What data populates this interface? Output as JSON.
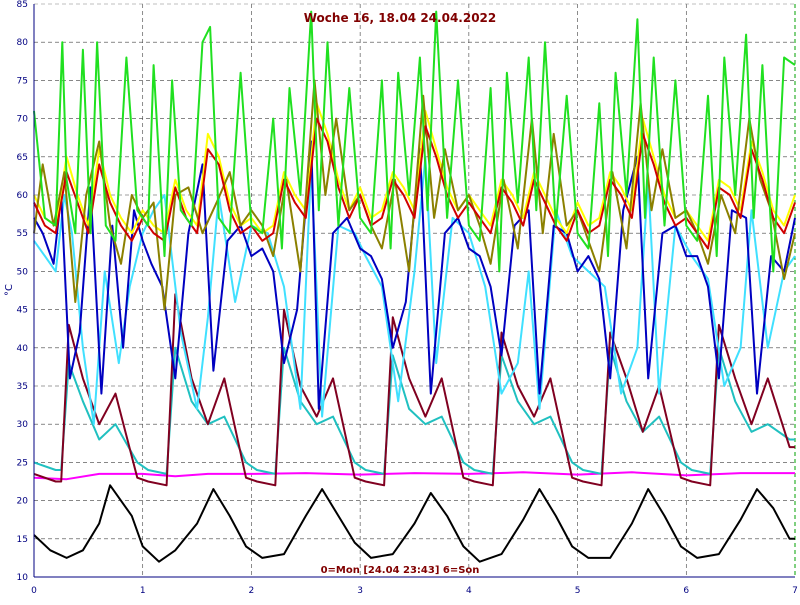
{
  "chart_data": {
    "type": "line",
    "title": "Woche 16, 18.04  24.04.2022",
    "legend_text": "0=Mon [24.04 23:43] 6=Son",
    "ylabel": "°C",
    "xlim": [
      0,
      7
    ],
    "ylim": [
      10,
      85
    ],
    "x_ticks": [
      0,
      1,
      2,
      3,
      4,
      5,
      6,
      7
    ],
    "y_ticks": [
      10,
      15,
      20,
      25,
      30,
      35,
      40,
      45,
      50,
      55,
      60,
      65,
      70,
      75,
      80,
      85
    ],
    "grid": true,
    "series": [
      {
        "color": "#000000",
        "x": [
          0,
          0.15,
          0.3,
          0.45,
          0.6,
          0.7,
          0.9,
          1.0,
          1.15,
          1.3,
          1.5,
          1.65,
          1.8,
          1.95,
          2.1,
          2.3,
          2.5,
          2.65,
          2.8,
          2.95,
          3.1,
          3.3,
          3.5,
          3.65,
          3.8,
          3.95,
          4.1,
          4.3,
          4.5,
          4.65,
          4.8,
          4.95,
          5.1,
          5.3,
          5.5,
          5.65,
          5.8,
          5.95,
          6.1,
          6.3,
          6.5,
          6.65,
          6.8,
          6.95,
          7.0
        ],
        "y": [
          15.5,
          13.5,
          12.5,
          13.5,
          17,
          22,
          18,
          14,
          12,
          13.5,
          17,
          21.5,
          18,
          14,
          12.5,
          13,
          18,
          21.5,
          18,
          14.5,
          12.5,
          13,
          17,
          21,
          18,
          14,
          12,
          13,
          17.5,
          21.5,
          18,
          14,
          12.5,
          12.5,
          17,
          21.5,
          18,
          14,
          12.5,
          13,
          17.5,
          21.5,
          19,
          15,
          15
        ]
      },
      {
        "color": "#ff00ff",
        "x": [
          0,
          0.3,
          0.6,
          1.0,
          1.3,
          1.6,
          2.0,
          2.5,
          3.0,
          3.5,
          4.0,
          4.5,
          5.0,
          5.5,
          6.0,
          6.5,
          7.0
        ],
        "y": [
          23,
          22.8,
          23.5,
          23.5,
          23.2,
          23.5,
          23.5,
          23.6,
          23.4,
          23.6,
          23.5,
          23.7,
          23.4,
          23.7,
          23.3,
          23.6,
          23.6
        ]
      },
      {
        "color": "#20c0c0",
        "x": [
          0,
          0.2,
          0.25,
          0.32,
          0.45,
          0.6,
          0.75,
          0.95,
          1.05,
          1.22,
          1.3,
          1.45,
          1.6,
          1.75,
          1.95,
          2.05,
          2.22,
          2.3,
          2.45,
          2.6,
          2.75,
          2.95,
          3.05,
          3.22,
          3.3,
          3.45,
          3.6,
          3.75,
          3.95,
          4.05,
          4.22,
          4.3,
          4.45,
          4.6,
          4.75,
          4.95,
          5.05,
          5.22,
          5.3,
          5.45,
          5.6,
          5.75,
          5.95,
          6.05,
          6.22,
          6.3,
          6.45,
          6.6,
          6.75,
          6.95,
          7.0
        ],
        "y": [
          25,
          24,
          24,
          38,
          33,
          28,
          30,
          25,
          24,
          23.5,
          40,
          33,
          30,
          31,
          25,
          24,
          23.5,
          40,
          33,
          30,
          31,
          25,
          24,
          23.5,
          39,
          32,
          30,
          31,
          25,
          24,
          23.5,
          39,
          33,
          30,
          31,
          25,
          24,
          23.5,
          40,
          33,
          29,
          31,
          25,
          24,
          23.5,
          40,
          33,
          29,
          30,
          28,
          28
        ]
      },
      {
        "color": "#800020",
        "x": [
          0,
          0.2,
          0.25,
          0.32,
          0.45,
          0.6,
          0.75,
          0.95,
          1.05,
          1.22,
          1.3,
          1.45,
          1.6,
          1.75,
          1.95,
          2.05,
          2.22,
          2.3,
          2.45,
          2.6,
          2.75,
          2.95,
          3.05,
          3.22,
          3.3,
          3.45,
          3.6,
          3.75,
          3.95,
          4.05,
          4.22,
          4.3,
          4.45,
          4.6,
          4.75,
          4.95,
          5.05,
          5.22,
          5.3,
          5.45,
          5.6,
          5.75,
          5.95,
          6.05,
          6.22,
          6.3,
          6.45,
          6.6,
          6.75,
          6.95,
          7.0
        ],
        "y": [
          23.5,
          22.5,
          22.5,
          43,
          36,
          30,
          34,
          23,
          22.5,
          22,
          47,
          36,
          30,
          36,
          23,
          22.5,
          22,
          45,
          35,
          31,
          36,
          23,
          22.5,
          22,
          44,
          36,
          31,
          36,
          23,
          22.5,
          22,
          42,
          35,
          31,
          36,
          23,
          22.5,
          22,
          42,
          36,
          29,
          35,
          23,
          22.5,
          22,
          43,
          36,
          30,
          36,
          27,
          27
        ]
      },
      {
        "color": "#40e0ff",
        "x": [
          0,
          0.1,
          0.2,
          0.28,
          0.35,
          0.45,
          0.55,
          0.65,
          0.78,
          0.88,
          1.0,
          1.1,
          1.2,
          1.35,
          1.5,
          1.6,
          1.7,
          1.85,
          2.0,
          2.15,
          2.3,
          2.45,
          2.55,
          2.65,
          2.8,
          2.95,
          3.05,
          3.2,
          3.35,
          3.5,
          3.6,
          3.7,
          3.85,
          4.0,
          4.15,
          4.3,
          4.45,
          4.55,
          4.65,
          4.8,
          4.95,
          5.1,
          5.25,
          5.4,
          5.55,
          5.65,
          5.75,
          5.9,
          6.05,
          6.2,
          6.35,
          6.5,
          6.6,
          6.75,
          6.9,
          7.0
        ],
        "y": [
          54,
          52,
          50,
          60,
          55,
          40,
          30,
          50,
          38,
          48,
          55,
          58,
          60,
          42,
          32,
          44,
          60,
          46,
          56,
          55,
          48,
          32,
          64,
          31,
          56,
          55,
          52,
          48,
          33,
          50,
          65,
          38,
          57,
          55,
          48,
          34,
          38,
          50,
          32,
          58,
          52,
          50,
          48,
          34,
          40,
          62,
          34,
          56,
          52,
          49,
          35,
          40,
          58,
          40,
          50,
          52
        ]
      },
      {
        "color": "#0000c0",
        "x": [
          0,
          0.08,
          0.18,
          0.25,
          0.33,
          0.42,
          0.52,
          0.62,
          0.72,
          0.82,
          0.92,
          1.0,
          1.08,
          1.18,
          1.3,
          1.42,
          1.55,
          1.65,
          1.78,
          1.9,
          2.0,
          2.1,
          2.2,
          2.3,
          2.42,
          2.55,
          2.62,
          2.75,
          2.88,
          3.0,
          3.1,
          3.2,
          3.3,
          3.42,
          3.55,
          3.65,
          3.78,
          3.9,
          4.0,
          4.1,
          4.2,
          4.3,
          4.42,
          4.55,
          4.65,
          4.78,
          4.9,
          5.0,
          5.1,
          5.2,
          5.3,
          5.42,
          5.55,
          5.65,
          5.78,
          5.9,
          6.0,
          6.1,
          6.2,
          6.3,
          6.42,
          6.55,
          6.65,
          6.78,
          6.9,
          7.0
        ],
        "y": [
          57,
          55,
          51,
          60,
          36,
          42,
          61,
          34,
          56,
          40,
          58,
          54,
          51,
          48,
          36,
          55,
          64,
          37,
          54,
          56,
          52,
          53,
          50,
          38,
          45,
          67,
          32,
          55,
          57,
          53,
          52,
          49,
          40,
          46,
          66,
          34,
          55,
          57,
          53,
          52,
          48,
          39,
          56,
          58,
          34,
          56,
          55,
          50,
          52,
          49,
          36,
          58,
          65,
          36,
          55,
          56,
          52,
          52,
          48,
          36,
          58,
          57,
          34,
          52,
          50,
          57
        ]
      },
      {
        "color": "#ffff00",
        "x": [
          0,
          0.1,
          0.2,
          0.3,
          0.4,
          0.5,
          0.6,
          0.7,
          0.8,
          0.9,
          1.0,
          1.1,
          1.2,
          1.3,
          1.4,
          1.5,
          1.6,
          1.7,
          1.8,
          1.9,
          2.0,
          2.1,
          2.2,
          2.3,
          2.4,
          2.5,
          2.6,
          2.7,
          2.8,
          2.9,
          3.0,
          3.1,
          3.2,
          3.3,
          3.4,
          3.5,
          3.6,
          3.7,
          3.8,
          3.9,
          4.0,
          4.1,
          4.2,
          4.3,
          4.4,
          4.5,
          4.6,
          4.7,
          4.8,
          4.9,
          5.0,
          5.1,
          5.2,
          5.3,
          5.4,
          5.5,
          5.6,
          5.7,
          5.8,
          5.9,
          6.0,
          6.1,
          6.2,
          6.3,
          6.4,
          6.5,
          6.6,
          6.7,
          6.8,
          6.9,
          7.0
        ],
        "y": [
          60,
          57,
          56,
          65,
          60,
          56,
          66,
          60,
          57,
          55,
          58,
          56,
          55,
          62,
          58,
          56,
          68,
          65,
          59,
          56,
          57,
          55,
          56,
          63,
          60,
          58,
          72,
          68,
          62,
          58,
          61,
          57,
          58,
          63,
          61,
          58,
          71,
          66,
          61,
          58,
          60,
          58,
          56,
          62,
          60,
          57,
          63,
          60,
          57,
          55,
          59,
          56,
          57,
          63,
          61,
          58,
          70,
          65,
          60,
          57,
          58,
          56,
          54,
          62,
          61,
          58,
          67,
          63,
          58,
          56,
          60
        ]
      },
      {
        "color": "#8b8000",
        "x": [
          0,
          0.08,
          0.18,
          0.28,
          0.38,
          0.48,
          0.6,
          0.7,
          0.8,
          0.9,
          1.0,
          1.1,
          1.2,
          1.3,
          1.42,
          1.55,
          1.68,
          1.8,
          1.9,
          2.0,
          2.1,
          2.2,
          2.32,
          2.45,
          2.58,
          2.68,
          2.78,
          2.9,
          3.0,
          3.1,
          3.2,
          3.32,
          3.45,
          3.58,
          3.68,
          3.78,
          3.9,
          4.0,
          4.1,
          4.2,
          4.32,
          4.45,
          4.58,
          4.68,
          4.78,
          4.9,
          5.0,
          5.1,
          5.2,
          5.32,
          5.45,
          5.58,
          5.68,
          5.78,
          5.9,
          6.0,
          6.1,
          6.2,
          6.32,
          6.45,
          6.58,
          6.68,
          6.78,
          6.9,
          7.0
        ],
        "y": [
          55,
          64,
          56,
          63,
          46,
          60,
          67,
          56,
          51,
          60,
          57,
          59,
          45,
          60,
          61,
          55,
          59,
          63,
          56,
          58,
          56,
          52,
          62,
          50,
          75,
          60,
          70,
          58,
          60,
          56,
          53,
          62,
          50,
          73,
          57,
          66,
          58,
          60,
          56,
          51,
          62,
          53,
          70,
          55,
          68,
          56,
          58,
          54,
          50,
          63,
          53,
          72,
          58,
          66,
          57,
          58,
          55,
          51,
          60,
          55,
          70,
          62,
          58,
          49,
          55
        ]
      },
      {
        "color": "#d00000",
        "x": [
          0,
          0.1,
          0.2,
          0.3,
          0.4,
          0.5,
          0.6,
          0.7,
          0.8,
          0.9,
          1.0,
          1.1,
          1.2,
          1.3,
          1.4,
          1.5,
          1.6,
          1.7,
          1.8,
          1.9,
          2.0,
          2.1,
          2.2,
          2.3,
          2.4,
          2.5,
          2.6,
          2.7,
          2.8,
          2.9,
          3.0,
          3.1,
          3.2,
          3.3,
          3.4,
          3.5,
          3.6,
          3.7,
          3.8,
          3.9,
          4.0,
          4.1,
          4.2,
          4.3,
          4.4,
          4.5,
          4.6,
          4.7,
          4.8,
          4.9,
          5.0,
          5.1,
          5.2,
          5.3,
          5.4,
          5.5,
          5.6,
          5.7,
          5.8,
          5.9,
          6.0,
          6.1,
          6.2,
          6.3,
          6.4,
          6.5,
          6.6,
          6.7,
          6.8,
          6.9,
          7.0
        ],
        "y": [
          59,
          56,
          55,
          63,
          59,
          55,
          64,
          59,
          56,
          54,
          57,
          55,
          54,
          61,
          57,
          55,
          66,
          64,
          58,
          55,
          56,
          54,
          55,
          62,
          59,
          57,
          70,
          67,
          61,
          57,
          60,
          56,
          57,
          62,
          60,
          57,
          69,
          65,
          60,
          57,
          59,
          57,
          55,
          61,
          59,
          56,
          62,
          59,
          56,
          54,
          58,
          55,
          56,
          62,
          60,
          57,
          68,
          64,
          59,
          56,
          57,
          55,
          53,
          61,
          60,
          57,
          66,
          62,
          57,
          55,
          59
        ]
      },
      {
        "color": "#20e020",
        "x": [
          0,
          0.1,
          0.2,
          0.26,
          0.3,
          0.38,
          0.45,
          0.52,
          0.58,
          0.66,
          0.75,
          0.85,
          0.95,
          1.05,
          1.1,
          1.2,
          1.27,
          1.35,
          1.45,
          1.55,
          1.62,
          1.7,
          1.8,
          1.9,
          2.0,
          2.1,
          2.2,
          2.28,
          2.35,
          2.45,
          2.55,
          2.62,
          2.7,
          2.8,
          2.9,
          3.0,
          3.1,
          3.2,
          3.28,
          3.35,
          3.45,
          3.55,
          3.62,
          3.7,
          3.8,
          3.9,
          4.0,
          4.1,
          4.2,
          4.28,
          4.35,
          4.45,
          4.55,
          4.62,
          4.7,
          4.8,
          4.9,
          5.0,
          5.1,
          5.2,
          5.28,
          5.35,
          5.45,
          5.55,
          5.62,
          5.7,
          5.8,
          5.9,
          6.0,
          6.1,
          6.2,
          6.28,
          6.35,
          6.45,
          6.55,
          6.62,
          6.7,
          6.8,
          6.9,
          7.0
        ],
        "y": [
          71,
          57,
          56,
          80,
          62,
          55,
          79,
          55,
          80,
          56,
          54,
          78,
          58,
          56,
          77,
          52,
          75,
          58,
          56,
          80,
          82,
          57,
          55,
          76,
          56,
          55,
          70,
          53,
          74,
          60,
          84,
          58,
          80,
          56,
          74,
          57,
          55,
          75,
          53,
          76,
          60,
          78,
          58,
          84,
          57,
          75,
          56,
          54,
          74,
          50,
          76,
          59,
          78,
          58,
          80,
          56,
          73,
          55,
          53,
          72,
          52,
          76,
          60,
          83,
          57,
          78,
          56,
          75,
          56,
          54,
          73,
          52,
          78,
          60,
          81,
          57,
          77,
          50,
          78,
          77
        ]
      }
    ]
  }
}
